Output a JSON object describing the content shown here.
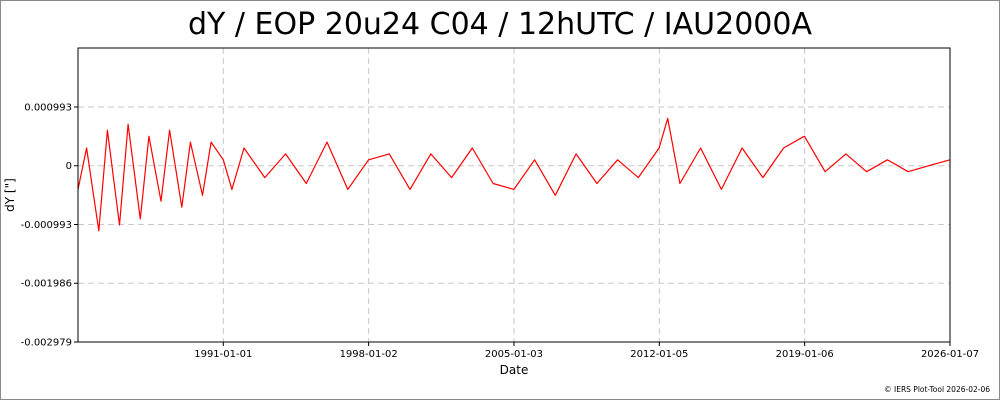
{
  "chart_data": {
    "type": "line",
    "title": "dY / EOP 20u24 C04 / 12hUTC / IAU2000A",
    "xlabel": "Date",
    "ylabel": "dY [\"]",
    "x_range": [
      "1984-01-01",
      "2026-01-07"
    ],
    "ylim": [
      -0.002979,
      0.00199
    ],
    "x_ticks": [
      "1991-01-01",
      "1998-01-02",
      "2005-01-03",
      "2012-01-05",
      "2019-01-06",
      "2026-01-07"
    ],
    "y_ticks": [
      0.000993,
      0,
      -0.000993,
      -0.001986,
      -0.002979
    ],
    "y_tick_labels": [
      "0.000993",
      "0",
      "-0.000993",
      "-0.001986",
      "-0.002979"
    ],
    "grid": true,
    "series": [
      {
        "color": "#ff0000",
        "x": [
          "1984-01-01",
          "1984-06-01",
          "1985-01-01",
          "1985-06-01",
          "1986-01-01",
          "1986-06-01",
          "1987-01-01",
          "1987-06-01",
          "1988-01-01",
          "1988-06-01",
          "1989-01-01",
          "1989-06-01",
          "1990-01-01",
          "1990-06-01",
          "1991-01-01",
          "1991-06-01",
          "1992-01-01",
          "1993-01-01",
          "1994-01-01",
          "1995-01-01",
          "1996-01-01",
          "1997-01-01",
          "1998-01-01",
          "1999-01-01",
          "2000-01-01",
          "2001-01-01",
          "2002-01-01",
          "2003-01-01",
          "2004-01-01",
          "2005-01-01",
          "2006-01-01",
          "2007-01-01",
          "2008-01-01",
          "2009-01-01",
          "2010-01-01",
          "2011-01-01",
          "2012-01-01",
          "2012-06-01",
          "2013-01-01",
          "2014-01-01",
          "2015-01-01",
          "2016-01-01",
          "2017-01-01",
          "2018-01-01",
          "2019-01-01",
          "2020-01-01",
          "2021-01-01",
          "2022-01-01",
          "2023-01-01",
          "2024-01-01",
          "2025-01-01",
          "2026-01-07"
        ],
        "y": [
          -0.0004,
          0.0003,
          -0.0011,
          0.0006,
          -0.001,
          0.0007,
          -0.0009,
          0.0005,
          -0.0006,
          0.0006,
          -0.0007,
          0.0004,
          -0.0005,
          0.0004,
          0.0001,
          -0.0004,
          0.0003,
          -0.0002,
          0.0002,
          -0.0003,
          0.0004,
          -0.0004,
          0.0001,
          0.0002,
          -0.0004,
          0.0002,
          -0.0002,
          0.0003,
          -0.0003,
          -0.0004,
          0.0001,
          -0.0005,
          0.0002,
          -0.0003,
          0.0001,
          -0.0002,
          0.0003,
          0.0008,
          -0.0003,
          0.0003,
          -0.0004,
          0.0003,
          -0.0002,
          0.0003,
          0.0005,
          -0.0001,
          0.0002,
          -0.0001,
          0.0001,
          -0.0001,
          0.0,
          0.0001
        ]
      }
    ]
  },
  "credit": "© IERS Plot-Tool 2026-02-06"
}
